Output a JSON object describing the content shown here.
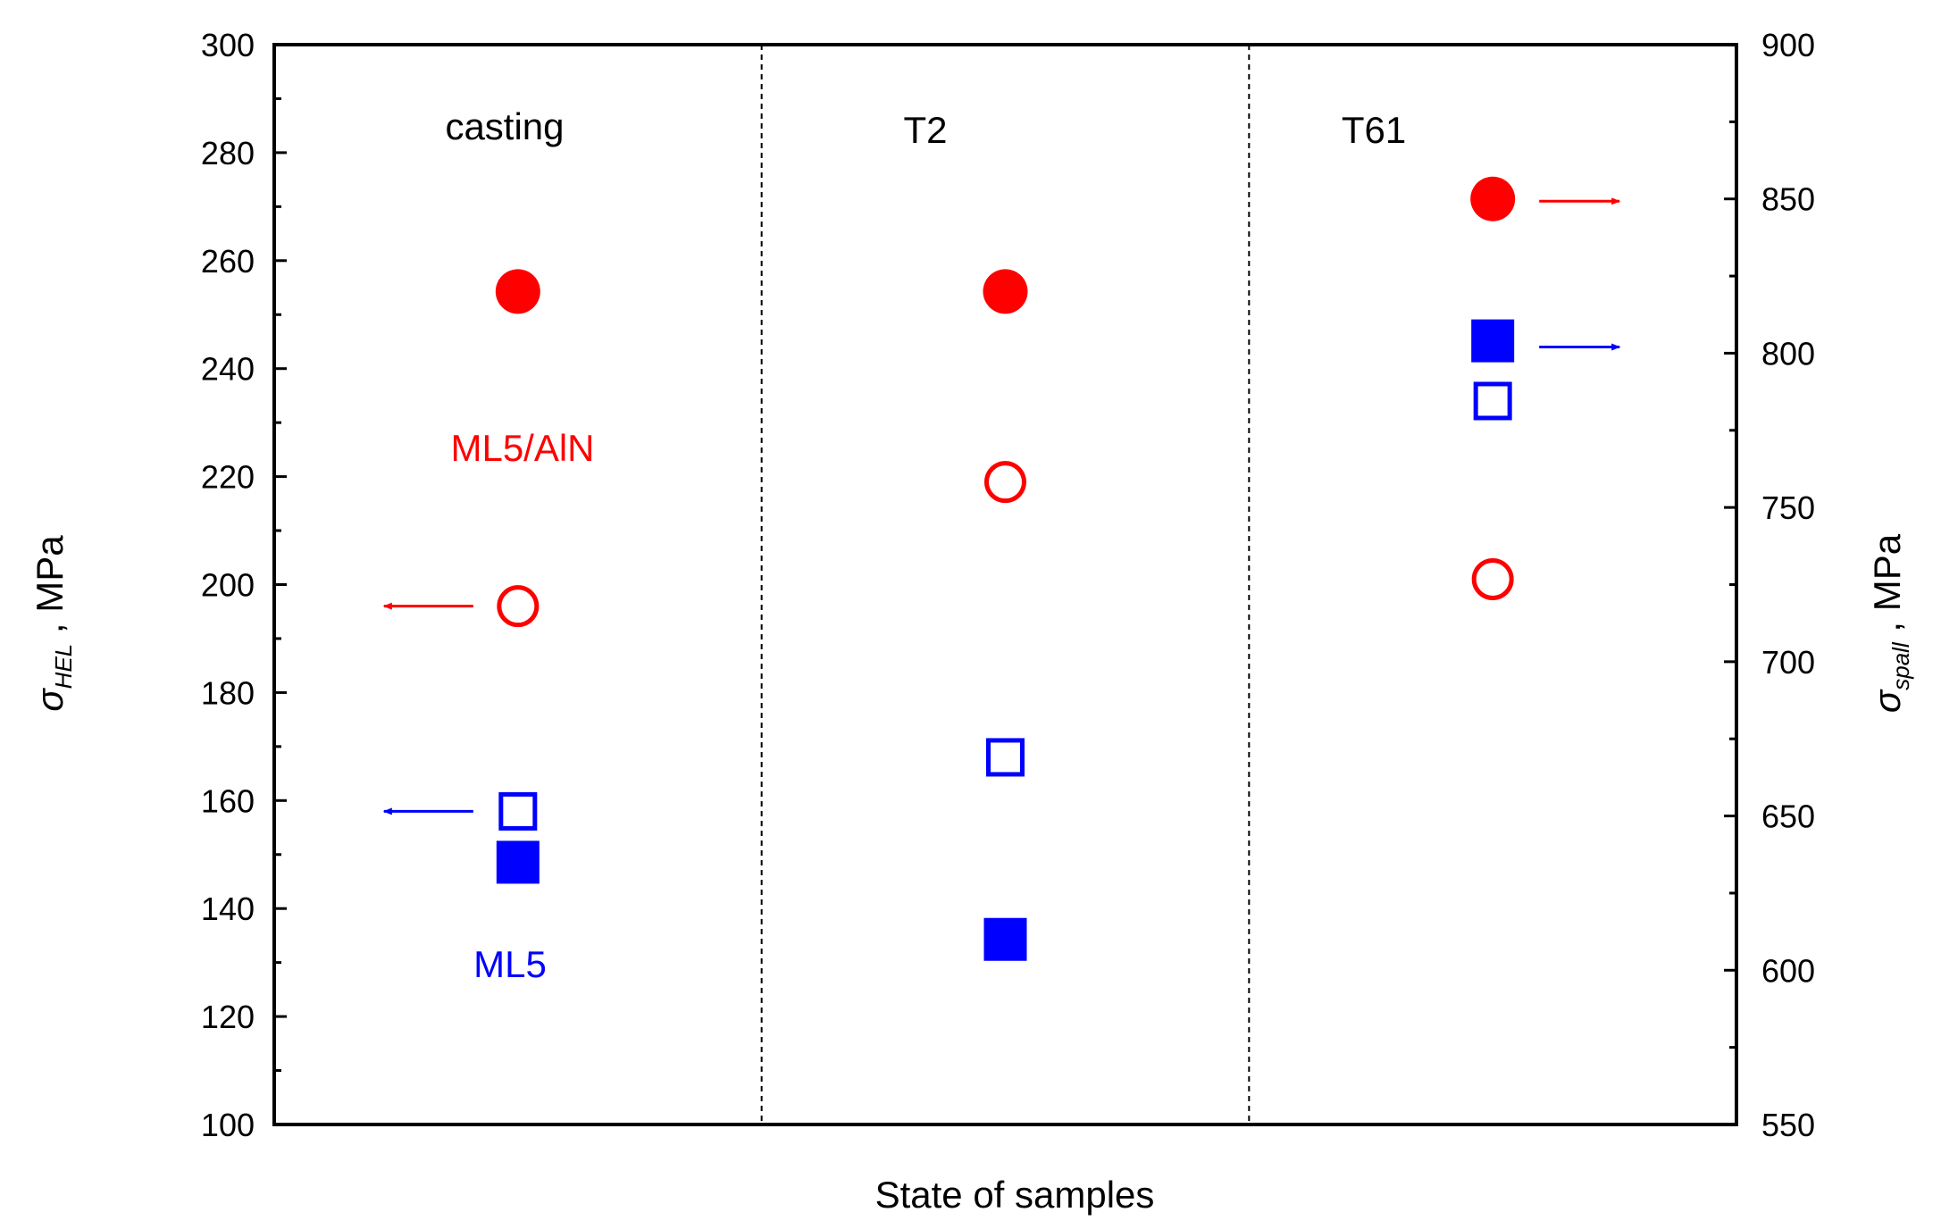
{
  "colors": {
    "ml5aln": "#ff0000",
    "ml5": "#0000ff",
    "axis": "#000000"
  },
  "chart_data": {
    "type": "scatter",
    "categories": [
      "casting",
      "T2",
      "T61"
    ],
    "xlabel": "State of samples",
    "ylabel": {
      "symbol": "σ",
      "sub": "HEL",
      "unit": " , MPa"
    },
    "ylabel_right": {
      "symbol": "σ",
      "sub": "spall",
      "unit": " , MPa"
    },
    "ylim": [
      100,
      300
    ],
    "yticks": [
      100,
      120,
      140,
      160,
      180,
      200,
      220,
      240,
      260,
      280,
      300
    ],
    "ylim_right": [
      550,
      900
    ],
    "yticks_right": [
      550,
      600,
      650,
      700,
      750,
      800,
      850,
      900
    ],
    "series": [
      {
        "name": "ML5/AlN σHEL",
        "axis": "left",
        "marker": "circle",
        "filled": false,
        "color": "#ff0000",
        "values": [
          196,
          219,
          201
        ]
      },
      {
        "name": "ML5/AlN σspall",
        "axis": "right",
        "marker": "circle",
        "filled": true,
        "color": "#ff0000",
        "values": [
          820,
          820,
          850
        ]
      },
      {
        "name": "ML5 σHEL",
        "axis": "left",
        "marker": "square",
        "filled": false,
        "color": "#0000ff",
        "values": [
          158,
          168,
          234
        ]
      },
      {
        "name": "ML5 σspall",
        "axis": "right",
        "marker": "square",
        "filled": true,
        "color": "#0000ff",
        "values": [
          635,
          610,
          804
        ]
      }
    ],
    "annotations": [
      {
        "text": "ML5/AlN",
        "color": "#ff0000",
        "category": 0,
        "y": 226
      },
      {
        "text": "ML5",
        "color": "#0000ff",
        "category": 0,
        "y": 130
      }
    ],
    "arrows": [
      {
        "color": "#ff0000",
        "direction": "left",
        "category": 0,
        "y": 196
      },
      {
        "color": "#0000ff",
        "direction": "left",
        "category": 0,
        "y": 158
      },
      {
        "color": "#ff0000",
        "direction": "right",
        "category": 2,
        "y": 271
      },
      {
        "color": "#0000ff",
        "direction": "right",
        "category": 2,
        "y": 244
      }
    ]
  }
}
